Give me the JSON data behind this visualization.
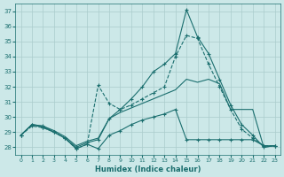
{
  "xlabel": "Humidex (Indice chaleur)",
  "background_color": "#cce8e8",
  "grid_color": "#aacccc",
  "line_color": "#1a6e6e",
  "xlim": [
    -0.5,
    23.5
  ],
  "ylim": [
    27.5,
    37.5
  ],
  "yticks": [
    28,
    29,
    30,
    31,
    32,
    33,
    34,
    35,
    36,
    37
  ],
  "xticks": [
    0,
    1,
    2,
    3,
    4,
    5,
    6,
    7,
    8,
    9,
    10,
    11,
    12,
    13,
    14,
    15,
    16,
    17,
    18,
    19,
    20,
    21,
    22,
    23
  ],
  "series": [
    {
      "x": [
        0,
        1,
        2,
        3,
        4,
        5,
        6,
        7,
        8,
        9,
        10,
        11,
        12,
        13,
        14,
        15,
        16,
        17,
        18,
        19,
        20,
        21,
        22,
        23
      ],
      "y": [
        28.8,
        29.5,
        29.4,
        29.0,
        28.6,
        28.0,
        28.3,
        28.5,
        29.9,
        30.5,
        31.2,
        32.0,
        33.0,
        33.5,
        34.2,
        37.1,
        35.3,
        34.2,
        32.5,
        30.8,
        29.5,
        28.8,
        28.0,
        28.1
      ],
      "linestyle": "-",
      "marker": "+"
    },
    {
      "x": [
        0,
        1,
        2,
        3,
        4,
        5,
        6,
        7,
        8,
        9,
        10,
        11,
        12,
        13,
        14,
        15,
        16,
        17,
        18,
        19,
        20,
        21,
        22,
        23
      ],
      "y": [
        28.8,
        29.4,
        29.3,
        29.0,
        28.6,
        27.9,
        28.2,
        32.1,
        30.9,
        30.5,
        30.8,
        31.2,
        31.6,
        32.0,
        34.0,
        35.4,
        35.2,
        33.5,
        32.0,
        30.5,
        29.2,
        28.6,
        28.1,
        28.1
      ],
      "linestyle": "--",
      "marker": "+"
    },
    {
      "x": [
        0,
        1,
        2,
        3,
        4,
        5,
        6,
        7,
        8,
        9,
        10,
        11,
        12,
        13,
        14,
        15,
        16,
        17,
        18,
        19,
        20,
        21,
        22,
        23
      ],
      "y": [
        28.8,
        29.5,
        29.4,
        29.1,
        28.7,
        28.1,
        28.4,
        28.6,
        29.9,
        30.3,
        30.6,
        30.9,
        31.2,
        31.5,
        31.8,
        32.5,
        32.3,
        32.5,
        32.2,
        30.5,
        30.5,
        30.5,
        28.0,
        28.1
      ],
      "linestyle": "-",
      "marker": null
    },
    {
      "x": [
        0,
        1,
        2,
        3,
        4,
        5,
        6,
        7,
        8,
        9,
        10,
        11,
        12,
        13,
        14,
        15,
        16,
        17,
        18,
        19,
        20,
        21,
        22,
        23
      ],
      "y": [
        28.8,
        29.5,
        29.3,
        29.0,
        28.6,
        27.9,
        28.2,
        27.9,
        28.8,
        29.1,
        29.5,
        29.8,
        30.0,
        30.2,
        30.5,
        28.5,
        28.5,
        28.5,
        28.5,
        28.5,
        28.5,
        28.5,
        28.1,
        28.1
      ],
      "linestyle": "-",
      "marker": "+"
    }
  ]
}
